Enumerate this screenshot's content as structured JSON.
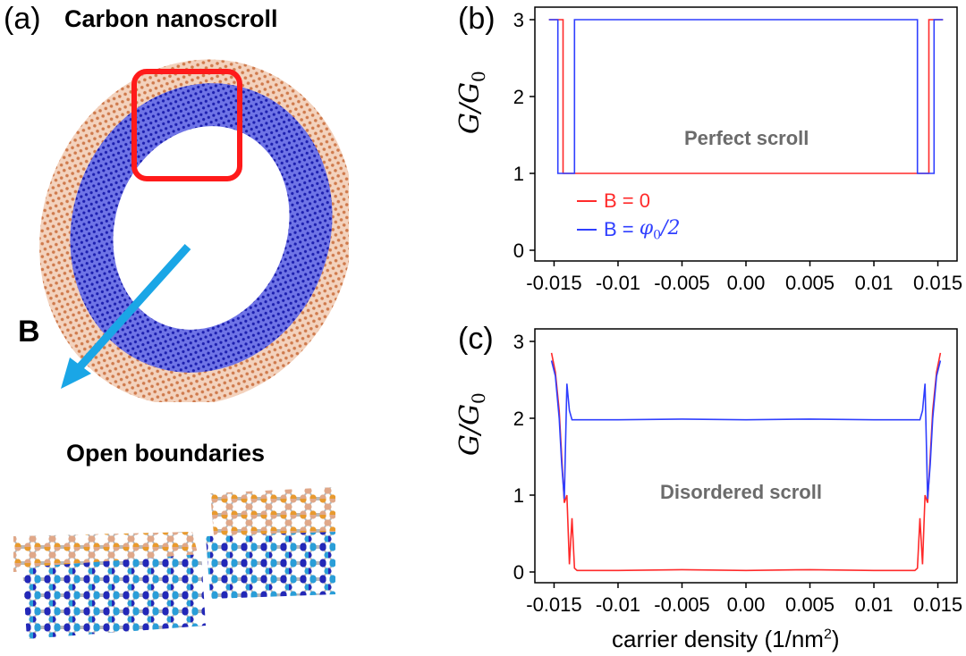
{
  "panel_a": {
    "label": "(a)",
    "title": "Carbon nanoscroll",
    "field_label": "B",
    "boundaries_title": "Open boundaries"
  },
  "panel_b": {
    "label": "(b)",
    "note": "Perfect scroll"
  },
  "panel_c": {
    "label": "(c)",
    "note": "Disordered scroll"
  },
  "ylabel": "G/G",
  "ylabel_sub": "0",
  "xlabel": "carrier density (1/nm",
  "xlabel_sup": "2",
  "xlabel_close": ")",
  "colors": {
    "red": "#ff2a2a",
    "blue": "#2f3fff",
    "arrow": "#1aa6e6",
    "note": "#6b6b6b"
  },
  "chart_data": [
    {
      "type": "line",
      "name": "panel-b",
      "xlim": [
        -0.0165,
        0.0165
      ],
      "ylim": [
        0,
        3
      ],
      "xticks": [
        "-0.015",
        "-0.01",
        "-0.005",
        "0.00",
        "0.005",
        "0.01",
        "0.015"
      ],
      "xtick_values": [
        -0.015,
        -0.01,
        -0.005,
        0.0,
        0.005,
        0.01,
        0.015
      ],
      "yticks": [
        "0",
        "1",
        "2",
        "3"
      ],
      "legend": [
        {
          "label": "B = 0",
          "color": "#ff2a2a"
        },
        {
          "label": "B = ",
          "math": "φ0/2",
          "color": "#2f3fff"
        }
      ],
      "legend_position": "lower-left",
      "series": [
        {
          "name": "B = 0",
          "color": "#ff2a2a",
          "x": [
            -0.0154,
            -0.0143,
            -0.0143,
            -0.0138,
            -0.0138,
            0.0138,
            0.0138,
            0.0143,
            0.0143,
            0.0154
          ],
          "y": [
            3,
            3,
            1,
            1,
            1,
            1,
            1,
            1,
            3,
            3
          ]
        },
        {
          "name": "B = φ0/2",
          "color": "#2f3fff",
          "x": [
            -0.0154,
            -0.0147,
            -0.0147,
            -0.0134,
            -0.0134,
            0.0134,
            0.0134,
            0.0147,
            0.0147,
            0.0154
          ],
          "y": [
            3,
            3,
            1,
            1,
            3,
            3,
            1,
            1,
            3,
            3
          ]
        }
      ]
    },
    {
      "type": "line",
      "name": "panel-c",
      "xlim": [
        -0.0165,
        0.0165
      ],
      "ylim": [
        0,
        3
      ],
      "xticks": [
        "-0.015",
        "-0.01",
        "-0.005",
        "0.00",
        "0.005",
        "0.01",
        "0.015"
      ],
      "xtick_values": [
        -0.015,
        -0.01,
        -0.005,
        0.0,
        0.005,
        0.01,
        0.015
      ],
      "yticks": [
        "0",
        "1",
        "2",
        "3"
      ],
      "series": [
        {
          "name": "B = 0",
          "color": "#ff2a2a",
          "x": [
            -0.0152,
            -0.0149,
            -0.0146,
            -0.0144,
            -0.0142,
            -0.014,
            -0.0138,
            -0.0136,
            -0.0134,
            -0.0132,
            -0.013,
            -0.01,
            -0.005,
            0.0,
            0.005,
            0.01,
            0.013,
            0.0132,
            0.0134,
            0.0136,
            0.0138,
            0.014,
            0.0142,
            0.0144,
            0.0146,
            0.0149,
            0.0152
          ],
          "y": [
            2.85,
            2.6,
            2.1,
            1.5,
            0.9,
            1.0,
            0.1,
            0.7,
            0.05,
            0.02,
            0.02,
            0.02,
            0.03,
            0.02,
            0.03,
            0.02,
            0.02,
            0.02,
            0.05,
            0.7,
            0.1,
            1.0,
            0.9,
            1.5,
            2.1,
            2.6,
            2.85
          ]
        },
        {
          "name": "B = φ0/2",
          "color": "#2f3fff",
          "x": [
            -0.0152,
            -0.0149,
            -0.0146,
            -0.0144,
            -0.0142,
            -0.014,
            -0.0138,
            -0.0136,
            -0.0134,
            -0.0132,
            -0.01,
            -0.005,
            0.0,
            0.005,
            0.01,
            0.0132,
            0.0134,
            0.0136,
            0.0138,
            0.014,
            0.0142,
            0.0144,
            0.0146,
            0.0149,
            0.0152
          ],
          "y": [
            2.75,
            2.55,
            2.0,
            1.4,
            0.95,
            2.45,
            2.1,
            1.98,
            1.98,
            1.98,
            1.98,
            1.99,
            1.98,
            1.99,
            1.98,
            1.98,
            1.98,
            1.98,
            2.1,
            2.45,
            0.95,
            1.4,
            2.0,
            2.55,
            2.75
          ]
        }
      ]
    }
  ]
}
